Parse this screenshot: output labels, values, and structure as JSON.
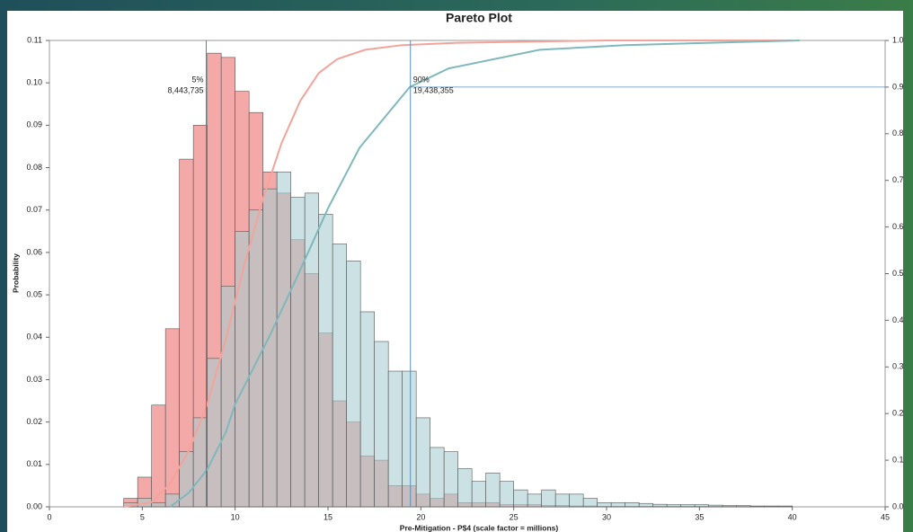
{
  "chart_data": {
    "type": "histogram",
    "title": "Pareto Plot",
    "x_label": "Pre-Mitigation - P$4 (scale factor = millions)",
    "y_label": "Probability",
    "xlim": [
      0,
      45
    ],
    "xticks": [
      0,
      5,
      10,
      15,
      20,
      25,
      30,
      35,
      40,
      45
    ],
    "ylim": [
      0,
      0.11
    ],
    "yticks": [
      {
        "value": 0,
        "label": "0.00"
      },
      0.01,
      0.02,
      0.03,
      0.04,
      0.05,
      0.06,
      0.07,
      0.08,
      0.09,
      {
        "value": 0.1,
        "label": "0.10"
      },
      0.11
    ],
    "y2lim": [
      0,
      1
    ],
    "y2ticks": [
      {
        "value": 0,
        "label": "0.0"
      },
      0.1,
      0.2,
      0.3,
      0.4,
      0.5,
      0.6,
      0.7,
      0.8,
      0.9,
      {
        "value": 1,
        "label": "1.0"
      }
    ],
    "bins": [
      4,
      4.75,
      5.5,
      6.25,
      7,
      7.75,
      8.5,
      9.25,
      10,
      10.75,
      11.5,
      12.25,
      13,
      13.75,
      14.5,
      15.25,
      16,
      16.75,
      17.5,
      18.25,
      19,
      19.75,
      20.5,
      21.25,
      22,
      22.75,
      23.5,
      24.25,
      25,
      25.75,
      26.5,
      27.25,
      28,
      28.75,
      29.5,
      30.25,
      31,
      31.75,
      32.5,
      33.25,
      34,
      34.75,
      35.5,
      36.25,
      37,
      37.75,
      38.5,
      39.25,
      40
    ],
    "series": [
      {
        "color": "#f08c8c",
        "values": [
          0.002,
          0.007,
          0.024,
          0.042,
          0.082,
          0.09,
          0.107,
          0.106,
          0.098,
          0.093,
          0.079,
          0.074,
          0.063,
          0.055,
          0.041,
          0.025,
          0.02,
          0.012,
          0.011,
          0.005,
          0.005,
          0.003,
          0.002,
          0.003,
          0.001,
          0.001,
          0.001,
          0.0005,
          0.0005,
          0.0005,
          0.0003,
          0.0003,
          0.0002,
          0.0002,
          0.0001,
          0.0001,
          0.0001,
          0.0001,
          0.0001,
          0.0001,
          0.0001,
          0.0001,
          0.0001,
          0.0001,
          0.0001,
          0.0001,
          0.0001,
          0.0001
        ]
      },
      {
        "color": "#a9cdd0",
        "values": [
          0.001,
          0.002,
          0.001,
          0.003,
          0.013,
          0.021,
          0.035,
          0.052,
          0.065,
          0.07,
          0.075,
          0.079,
          0.073,
          0.074,
          0.069,
          0.062,
          0.058,
          0.046,
          0.039,
          0.032,
          0.032,
          0.021,
          0.014,
          0.013,
          0.009,
          0.006,
          0.008,
          0.006,
          0.004,
          0.003,
          0.004,
          0.003,
          0.003,
          0.002,
          0.001,
          0.001,
          0.001,
          0.0008,
          0.0006,
          0.0005,
          0.0005,
          0.0005,
          0.0004,
          0.0003,
          0.0003,
          0.0002,
          0.0002,
          0.0002
        ]
      }
    ],
    "cumulative": [
      {
        "color": "#f4a39a",
        "axis": "y2",
        "x": [
          4,
          5.5,
          6.5,
          7.5,
          8.5,
          9.5,
          10.5,
          11.5,
          12.5,
          13.5,
          14.5,
          15.5,
          17,
          19,
          22,
          30,
          40
        ],
        "values": [
          0,
          0.01,
          0.05,
          0.12,
          0.22,
          0.36,
          0.52,
          0.66,
          0.78,
          0.87,
          0.93,
          0.96,
          0.98,
          0.99,
          0.995,
          1,
          1
        ]
      },
      {
        "color": "#7fb8bb",
        "axis": "y2",
        "x": [
          6.5,
          7.5,
          8.5,
          9.5,
          10,
          11.9,
          13.3,
          15,
          16.7,
          19.4,
          21.5,
          26.4,
          31,
          40.4
        ],
        "values": [
          0,
          0.03,
          0.08,
          0.16,
          0.22,
          0.37,
          0.49,
          0.64,
          0.77,
          0.9,
          0.94,
          0.98,
          0.99,
          1
        ]
      }
    ],
    "markers": [
      {
        "x": 8.443735,
        "p_label": "5%",
        "x_label": "8,443,735",
        "color": "#d9534f",
        "align": "end"
      },
      {
        "x": 19.438355,
        "p_label": "90%",
        "x_label": "19,438,355",
        "y2": 0.9,
        "color": "#5b8db8",
        "align": "start"
      }
    ]
  }
}
